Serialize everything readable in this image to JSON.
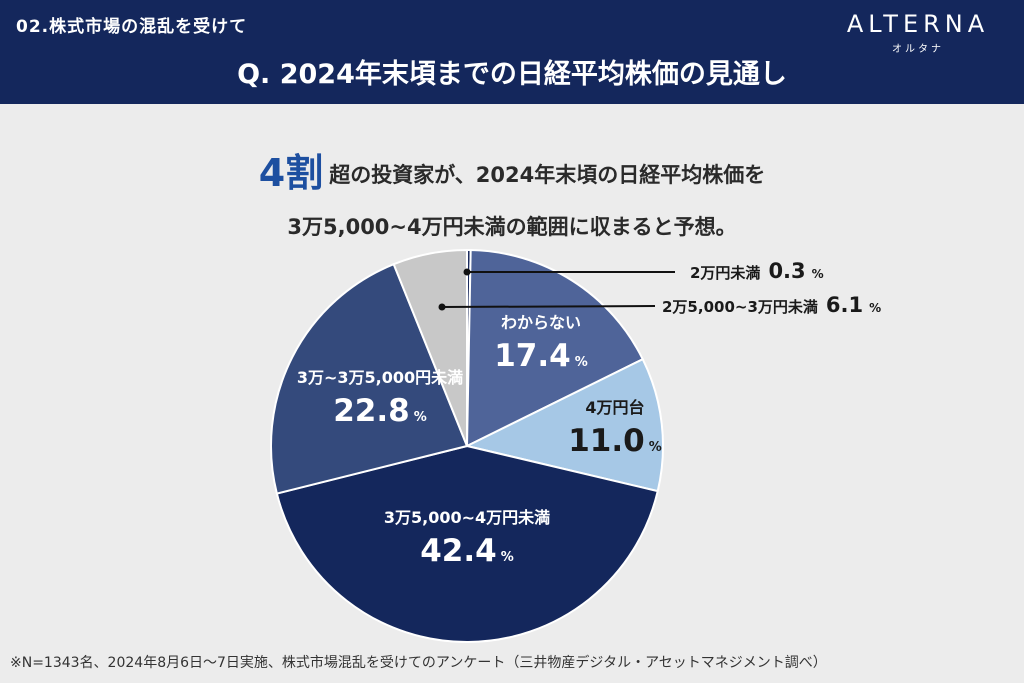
{
  "header": {
    "section_label": "02.株式市場の混乱を受けて",
    "title": "Q. 2024年末頃までの日経平均株価の見通し",
    "brand_name": "ALTERNA",
    "brand_kana": "オルタナ"
  },
  "headline": {
    "emphasis": "4割",
    "line1": "超の投資家が、2024年末頃の日経平均株価を",
    "line2": "3万5,000~4万円未満の範囲に収まると予想。"
  },
  "colors": {
    "header_bg": "#14275c",
    "accent_blue": "#1d4fa0"
  },
  "chart_data": {
    "type": "pie",
    "unit": "%",
    "slices": [
      {
        "label": "2万円未満",
        "value": 0.3,
        "color": "#1b2b5e"
      },
      {
        "label": "わからない",
        "value": 17.4,
        "color": "#4f6499"
      },
      {
        "label": "4万円台",
        "value": 11.0,
        "color": "#a6c8e6"
      },
      {
        "label": "3万5,000~4万円未満",
        "value": 42.4,
        "color": "#14275c"
      },
      {
        "label": "3万~3万5,000円未満",
        "value": 22.8,
        "color": "#344a7c"
      },
      {
        "label": "2万5,000~3万円未満",
        "value": 6.1,
        "color": "#c8c8c8"
      }
    ]
  },
  "footnote": "※N=1343名、2024年8月6日〜7日実施、株式市場混乱を受けてのアンケート（三井物産デジタル・アセットマネジメント調べ）"
}
